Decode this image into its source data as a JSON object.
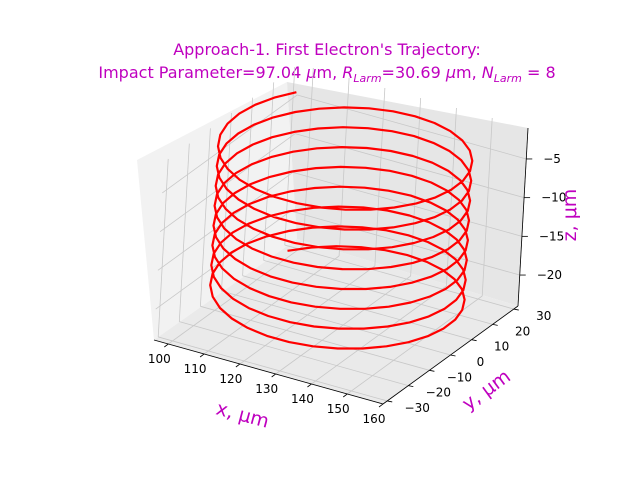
{
  "chart_data": {
    "type": "line3d",
    "title_line1": "Approach-1. First Electron's Trajectory:",
    "title_line2_prefix": "Impact Parameter=97.04 ",
    "title_mu": "μ",
    "title_line2_mid1": "m, ",
    "title_r": "R",
    "title_larm_sub": "Larm",
    "title_line2_mid2": "=30.69 ",
    "title_line2_mid3": "m, ",
    "title_n": "N",
    "title_line2_suffix": " = 8",
    "xlabel": "x, μm",
    "ylabel": "y, μm",
    "zlabel": "z, μm",
    "xticks": [
      "100",
      "110",
      "120",
      "130",
      "140",
      "150",
      "160"
    ],
    "yticks": [
      "−30",
      "−20",
      "−10",
      "0",
      "10",
      "20",
      "30"
    ],
    "zticks": [
      "−5",
      "−10",
      "−15",
      "−20"
    ],
    "xlim": [
      96,
      160
    ],
    "ylim": [
      -32,
      32
    ],
    "zlim": [
      -24,
      -1
    ],
    "grid": true,
    "series": [
      {
        "center_x": 127.9,
        "center_y": 0,
        "radius": 30.69,
        "turns": 8,
        "z_start": -1,
        "z_end": -21.5
      }
    ],
    "colors": {
      "title": "#bf00bf",
      "line": "#ff0000",
      "axis_label": "#bf00bf"
    }
  }
}
